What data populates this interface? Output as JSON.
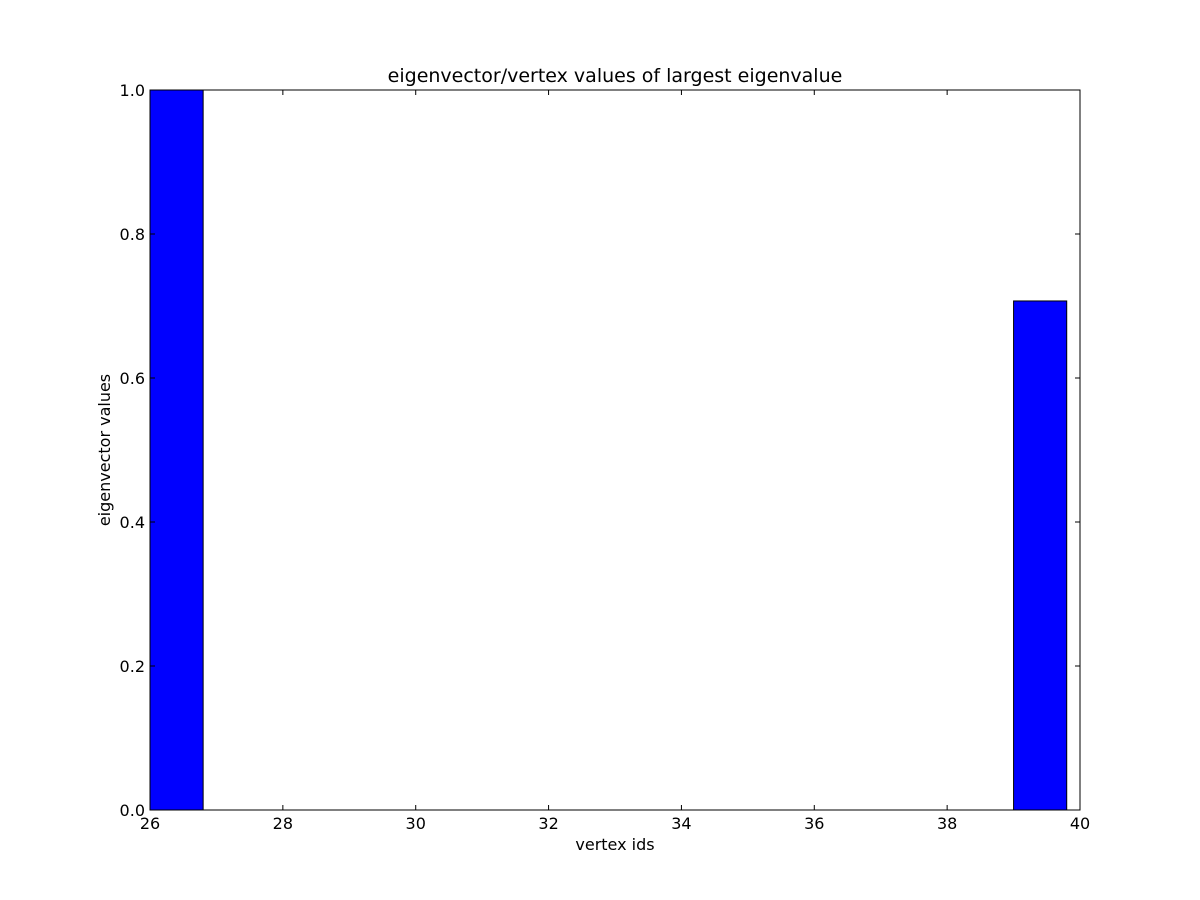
{
  "chart_data": {
    "type": "bar",
    "title": "eigenvector/vertex values of largest eigenvalue",
    "xlabel": "vertex ids",
    "ylabel": "eigenvector values",
    "xlim": [
      26,
      40
    ],
    "ylim": [
      0.0,
      1.0
    ],
    "xticks": [
      "26",
      "28",
      "30",
      "32",
      "34",
      "36",
      "38",
      "40"
    ],
    "yticks": [
      "0.0",
      "0.2",
      "0.4",
      "0.6",
      "0.8",
      "1.0"
    ],
    "bar_width": 0.8,
    "x": [
      26,
      27,
      28,
      29,
      30,
      31,
      32,
      33,
      34,
      35,
      36,
      37,
      38,
      39
    ],
    "values": [
      1.0,
      0.0,
      0.0,
      0.0,
      0.0,
      0.0,
      0.0,
      0.0,
      0.0,
      0.0,
      0.0,
      0.0,
      0.0,
      0.707
    ],
    "bar_color": "#0000ff",
    "edge_color": "#000000",
    "grid": false,
    "legend": false
  }
}
